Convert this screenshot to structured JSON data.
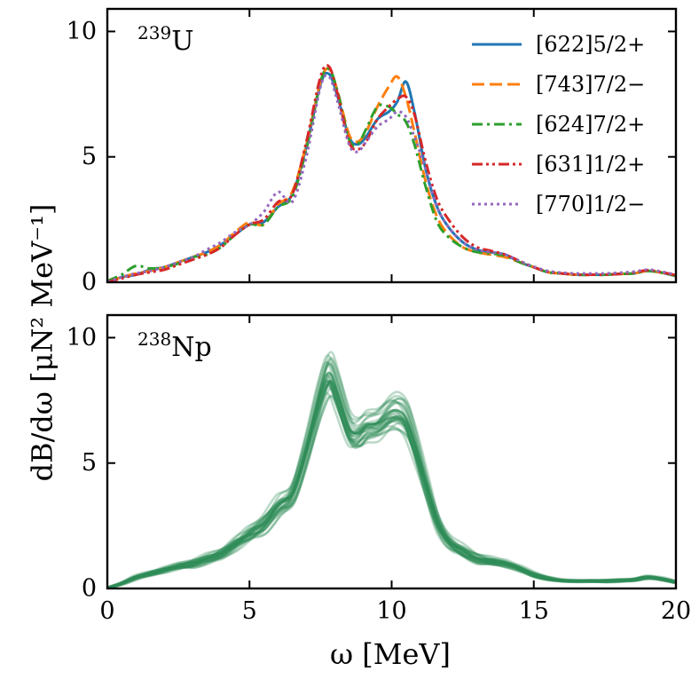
{
  "xlabel": "ω  [MeV]",
  "ylabel": "dB/dω  [μN² MeV⁻¹]",
  "chart_data": [
    {
      "type": "line",
      "panel_label": {
        "mass": "239",
        "element": "U"
      },
      "xlim": [
        0,
        20
      ],
      "ylim": [
        0,
        10.9
      ],
      "x_ticks": [
        0,
        5,
        10,
        15,
        20
      ],
      "y_ticks": [
        0,
        5,
        10
      ],
      "legend_position": "top-right",
      "x": [
        0,
        0.5,
        1,
        1.5,
        2,
        2.5,
        3,
        3.5,
        4,
        4.5,
        5,
        5.5,
        6,
        6.5,
        7,
        7.5,
        7.8,
        8.1,
        8.5,
        8.8,
        9.1,
        9.5,
        9.9,
        10.2,
        10.5,
        10.8,
        11.2,
        11.6,
        12,
        12.5,
        13,
        13.5,
        14,
        14.5,
        15,
        15.5,
        16,
        16.5,
        17,
        17.5,
        18,
        18.5,
        19,
        19.5,
        20
      ],
      "series": [
        {
          "name": "[622]5/2+",
          "color": "#1f77b4",
          "dash": "solid",
          "values": [
            0.02,
            0.2,
            0.3,
            0.5,
            0.6,
            0.8,
            1.0,
            1.2,
            1.5,
            1.9,
            2.3,
            2.4,
            3.0,
            3.5,
            5.4,
            7.9,
            8.3,
            7.4,
            5.8,
            5.5,
            5.8,
            6.5,
            6.8,
            7.2,
            8.0,
            6.8,
            4.5,
            3.0,
            2.2,
            1.6,
            1.3,
            1.2,
            1.1,
            0.8,
            0.6,
            0.4,
            0.35,
            0.3,
            0.3,
            0.3,
            0.33,
            0.35,
            0.45,
            0.38,
            0.25
          ]
        },
        {
          "name": "[743]7/2−",
          "color": "#ff7f0e",
          "dash": "dashed",
          "values": [
            0.02,
            0.2,
            0.35,
            0.45,
            0.6,
            0.8,
            1.0,
            1.2,
            1.5,
            2.0,
            2.4,
            2.3,
            3.1,
            3.6,
            5.5,
            8.0,
            8.5,
            7.6,
            5.9,
            5.6,
            6.0,
            7.0,
            7.8,
            8.2,
            7.4,
            6.0,
            4.0,
            2.6,
            1.9,
            1.4,
            1.2,
            1.1,
            1.0,
            0.8,
            0.6,
            0.4,
            0.35,
            0.3,
            0.3,
            0.3,
            0.33,
            0.35,
            0.45,
            0.38,
            0.25
          ]
        },
        {
          "name": "[624]7/2+",
          "color": "#2ca02c",
          "dash": "dashdot",
          "values": [
            0.05,
            0.3,
            0.65,
            0.55,
            0.6,
            0.75,
            1.0,
            1.1,
            1.4,
            1.9,
            2.3,
            2.3,
            3.0,
            3.4,
            5.3,
            8.0,
            8.5,
            7.6,
            5.7,
            5.5,
            6.1,
            7.0,
            7.0,
            6.7,
            6.4,
            5.5,
            3.8,
            2.4,
            1.8,
            1.4,
            1.2,
            1.15,
            1.05,
            0.8,
            0.6,
            0.4,
            0.35,
            0.3,
            0.3,
            0.3,
            0.33,
            0.35,
            0.45,
            0.38,
            0.25
          ]
        },
        {
          "name": "[631]1/2+",
          "color": "#d62728",
          "dash": "dashdotdot",
          "values": [
            0.02,
            0.15,
            0.3,
            0.4,
            0.5,
            0.7,
            0.9,
            1.1,
            1.4,
            1.9,
            2.3,
            2.5,
            3.2,
            3.5,
            5.6,
            8.2,
            8.6,
            7.5,
            5.6,
            5.3,
            5.6,
            6.5,
            7.0,
            7.3,
            7.4,
            6.7,
            4.8,
            3.3,
            2.5,
            1.8,
            1.4,
            1.25,
            1.1,
            0.85,
            0.6,
            0.42,
            0.35,
            0.3,
            0.3,
            0.3,
            0.33,
            0.38,
            0.48,
            0.4,
            0.28
          ]
        },
        {
          "name": "[770]1/2−",
          "color": "#9467bd",
          "dash": "dotted",
          "values": [
            0.02,
            0.2,
            0.35,
            0.45,
            0.6,
            0.8,
            1.0,
            1.3,
            1.6,
            2.0,
            2.3,
            2.8,
            3.6,
            3.2,
            5.0,
            7.8,
            8.2,
            7.2,
            5.5,
            5.2,
            5.6,
            6.2,
            6.5,
            6.8,
            6.6,
            5.8,
            4.5,
            3.0,
            2.2,
            1.6,
            1.3,
            1.2,
            1.1,
            0.85,
            0.62,
            0.45,
            0.38,
            0.35,
            0.35,
            0.35,
            0.38,
            0.42,
            0.5,
            0.42,
            0.3
          ]
        }
      ]
    },
    {
      "type": "line",
      "panel_label": {
        "mass": "238",
        "element": "Np"
      },
      "xlim": [
        0,
        20
      ],
      "ylim": [
        0,
        10.9
      ],
      "x_ticks": [
        0,
        5,
        10,
        15,
        20
      ],
      "y_ticks": [
        0,
        5,
        10
      ],
      "color": "#2e8b57",
      "ensemble_size": 28,
      "x": [
        0,
        0.5,
        1,
        1.5,
        2,
        2.5,
        3,
        3.5,
        4,
        4.5,
        5,
        5.5,
        6,
        6.5,
        7,
        7.5,
        7.8,
        8.1,
        8.5,
        8.8,
        9.1,
        9.5,
        9.9,
        10.2,
        10.5,
        10.8,
        11.2,
        11.6,
        12,
        12.5,
        13,
        13.5,
        14,
        14.5,
        15,
        15.5,
        16,
        16.5,
        17,
        17.5,
        18,
        18.5,
        19,
        19.5,
        20
      ],
      "central": [
        0.02,
        0.2,
        0.45,
        0.6,
        0.75,
        0.9,
        1.0,
        1.2,
        1.4,
        1.8,
        2.2,
        2.6,
        3.3,
        3.8,
        5.6,
        7.8,
        8.6,
        7.8,
        6.4,
        6.2,
        6.5,
        6.6,
        7.0,
        7.1,
        6.8,
        5.8,
        4.2,
        2.7,
        1.9,
        1.5,
        1.2,
        1.1,
        1.0,
        0.8,
        0.55,
        0.4,
        0.32,
        0.3,
        0.3,
        0.3,
        0.32,
        0.35,
        0.45,
        0.38,
        0.25
      ]
    }
  ]
}
